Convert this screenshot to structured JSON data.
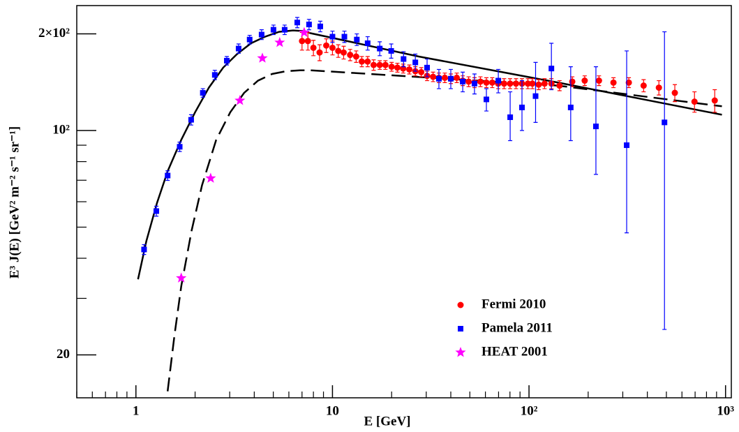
{
  "chart_data": {
    "type": "scatter",
    "x_label": "E [GeV]",
    "y_label": "E³ J(E) [GeV² m⁻² s⁻¹ sr⁻¹]",
    "log_x": true,
    "log_y": true,
    "xlim": [
      0.5,
      1070
    ],
    "ylim": [
      14.7,
      245
    ],
    "xticks": [
      1,
      10,
      {
        "value": 100,
        "label": "10²"
      },
      {
        "value": 1000,
        "label": "10³"
      }
    ],
    "yticks": [
      20,
      {
        "value": 100,
        "label": "10²"
      },
      {
        "value": 200,
        "label": "2×10²"
      }
    ],
    "xminor": [
      0.5,
      0.6,
      0.7,
      0.8,
      0.9,
      2,
      3,
      4,
      5,
      6,
      7,
      8,
      9,
      20,
      30,
      40,
      50,
      60,
      70,
      80,
      90,
      200,
      300,
      400,
      500,
      600,
      700,
      800,
      900
    ],
    "yminor": [
      30,
      40,
      50,
      60,
      70,
      80,
      90
    ],
    "legend_position": "lower center",
    "series": [
      {
        "name": "Fermi 2010",
        "color": "#ff0000",
        "marker": "circle",
        "x": [
          7.0,
          7.5,
          8.0,
          8.6,
          9.3,
          10.0,
          10.7,
          11.4,
          12.3,
          13.2,
          14.1,
          15.1,
          16.2,
          17.4,
          18.6,
          20.0,
          21.4,
          22.9,
          24.6,
          26.4,
          28.3,
          30.3,
          32.5,
          34.8,
          37.3,
          40.0,
          42.9,
          46.0,
          49.3,
          52.8,
          56.6,
          60.7,
          65.0,
          69.7,
          74.7,
          80.1,
          85.9,
          92.1,
          98.7,
          104,
          112,
          120,
          130,
          143,
          166,
          192,
          227,
          269,
          322,
          383,
          458,
          552,
          695,
          881
        ],
        "values": [
          190,
          190,
          181,
          175,
          184,
          181,
          177,
          175,
          172,
          170,
          164,
          164,
          160,
          160,
          160,
          158,
          157,
          156,
          155,
          153,
          152,
          148,
          147,
          146,
          146,
          145,
          146,
          143,
          142,
          141,
          142,
          141,
          141,
          140,
          140,
          140,
          140,
          140,
          140,
          140,
          139,
          140,
          140,
          138,
          142,
          143,
          143,
          141,
          141,
          138,
          136,
          131,
          123,
          124
        ],
        "err_minus": [
          12,
          12,
          10,
          10,
          9,
          9,
          8,
          8,
          7,
          7,
          6,
          6,
          6,
          5,
          5,
          5,
          5,
          5,
          5,
          5,
          5,
          5,
          5,
          5,
          5,
          5,
          5,
          5,
          5,
          5,
          5,
          5,
          5,
          5,
          5,
          5,
          5,
          5,
          5,
          5,
          5,
          5,
          5,
          5,
          5,
          5,
          5,
          5,
          5,
          6,
          7,
          8,
          9,
          10
        ],
        "err_plus": [
          12,
          12,
          10,
          10,
          9,
          9,
          8,
          8,
          7,
          7,
          6,
          6,
          6,
          5,
          5,
          5,
          5,
          5,
          5,
          5,
          5,
          5,
          5,
          5,
          5,
          5,
          5,
          5,
          5,
          5,
          5,
          5,
          5,
          5,
          5,
          5,
          5,
          5,
          5,
          5,
          5,
          5,
          5,
          5,
          5,
          5,
          5,
          5,
          5,
          6,
          7,
          8,
          9,
          10
        ]
      },
      {
        "name": "Pamela 2011",
        "color": "#0000ff",
        "marker": "square",
        "x": [
          1.1,
          1.27,
          1.45,
          1.67,
          1.91,
          2.19,
          2.52,
          2.9,
          3.33,
          3.79,
          4.36,
          5.01,
          5.71,
          6.62,
          7.6,
          8.67,
          10.0,
          11.5,
          13.3,
          15.1,
          17.4,
          19.9,
          23.0,
          26.4,
          30.3,
          34.8,
          40.0,
          46.0,
          52.8,
          60.7,
          69.8,
          80.2,
          92.1,
          108,
          130,
          163,
          219,
          314,
          489
        ],
        "values": [
          42.6,
          56.1,
          72.4,
          89.0,
          108,
          131,
          149,
          165,
          180,
          192,
          199,
          206,
          206,
          217,
          214,
          211,
          196,
          196,
          192,
          187,
          180,
          177,
          167,
          163,
          157,
          145,
          145,
          142,
          140,
          125,
          143,
          110,
          118,
          128,
          156,
          118,
          103,
          90,
          106
        ],
        "err_minus": [
          1.5,
          2,
          2.5,
          3,
          4,
          4,
          5,
          5,
          6,
          6,
          7,
          7,
          7,
          8,
          8,
          8,
          8,
          8,
          8,
          9,
          9,
          9,
          9,
          10,
          10,
          10,
          10,
          10,
          10,
          10,
          12,
          17,
          18,
          22,
          22,
          25,
          30,
          42,
          82
        ],
        "err_plus": [
          1.5,
          2,
          2.5,
          3,
          4,
          4,
          5,
          5,
          6,
          6,
          7,
          7,
          7,
          8,
          8,
          8,
          8,
          8,
          8,
          9,
          9,
          9,
          9,
          10,
          10,
          10,
          10,
          10,
          10,
          10,
          12,
          22,
          25,
          35,
          31,
          40,
          55,
          87,
          97
        ]
      },
      {
        "name": "HEAT 2001",
        "color": "#ff00ff",
        "marker": "star",
        "x": [
          1.7,
          2.4,
          3.38,
          4.4,
          5.39,
          7.18
        ],
        "values": [
          34.7,
          71.0,
          124,
          168,
          188,
          202
        ]
      }
    ],
    "curves": [
      {
        "style": "solid",
        "color": "#000000",
        "x": [
          1.025,
          1.13,
          1.28,
          1.45,
          1.7,
          2.0,
          2.35,
          2.78,
          3.27,
          3.85,
          4.54,
          5.35,
          6.3,
          7.22,
          7.72,
          27.5,
          141,
          958
        ],
        "values": [
          34.4,
          45.2,
          59.5,
          74.6,
          93.5,
          114,
          136,
          157,
          173,
          187,
          196,
          203,
          205,
          204,
          201,
          170,
          141,
          112
        ]
      },
      {
        "style": "dashed",
        "color": "#000000",
        "x": [
          1.45,
          1.57,
          1.7,
          1.92,
          2.17,
          2.56,
          3.02,
          3.55,
          4.18,
          4.93,
          5.81,
          6.84,
          7.72,
          141,
          958
        ],
        "values": [
          15.4,
          23.0,
          32.7,
          48.8,
          67.5,
          93.5,
          114,
          131,
          143,
          150,
          153,
          154,
          154,
          138,
          119
        ]
      }
    ]
  }
}
